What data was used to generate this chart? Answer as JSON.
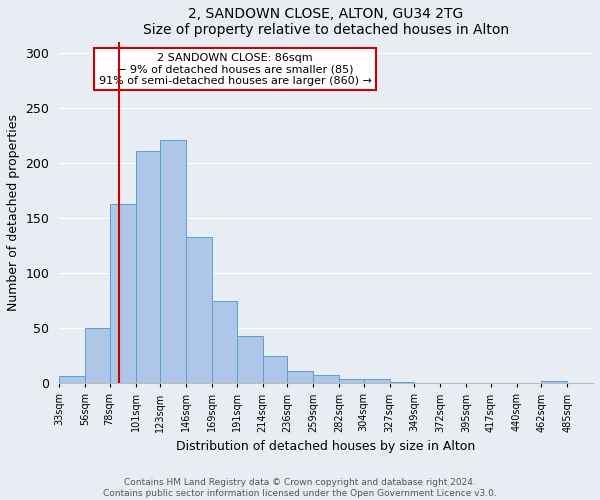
{
  "title": "2, SANDOWN CLOSE, ALTON, GU34 2TG",
  "subtitle": "Size of property relative to detached houses in Alton",
  "xlabel": "Distribution of detached houses by size in Alton",
  "ylabel": "Number of detached properties",
  "bin_labels": [
    "33sqm",
    "56sqm",
    "78sqm",
    "101sqm",
    "123sqm",
    "146sqm",
    "169sqm",
    "191sqm",
    "214sqm",
    "236sqm",
    "259sqm",
    "282sqm",
    "304sqm",
    "327sqm",
    "349sqm",
    "372sqm",
    "395sqm",
    "417sqm",
    "440sqm",
    "462sqm",
    "485sqm"
  ],
  "bin_edges": [
    33,
    56,
    78,
    101,
    123,
    146,
    169,
    191,
    214,
    236,
    259,
    282,
    304,
    327,
    349,
    372,
    395,
    417,
    440,
    462,
    485,
    508
  ],
  "bar_heights": [
    7,
    50,
    163,
    211,
    221,
    133,
    75,
    43,
    25,
    11,
    8,
    4,
    4,
    1,
    0,
    0,
    0,
    0,
    0,
    2,
    0
  ],
  "bar_color": "#aec6e8",
  "bar_edgecolor": "#5a9fd4",
  "vline_x": 86,
  "vline_color": "#cc0000",
  "annotation_lines": [
    "2 SANDOWN CLOSE: 86sqm",
    "← 9% of detached houses are smaller (85)",
    "91% of semi-detached houses are larger (860) →"
  ],
  "annotation_box_edgecolor": "#cc0000",
  "annotation_box_facecolor": "#ffffff",
  "ylim": [
    0,
    310
  ],
  "yticks": [
    0,
    50,
    100,
    150,
    200,
    250,
    300
  ],
  "background_color": "#e8edf4",
  "plot_background": "#e8edf4",
  "footer_line1": "Contains HM Land Registry data © Crown copyright and database right 2024.",
  "footer_line2": "Contains public sector information licensed under the Open Government Licence v3.0."
}
